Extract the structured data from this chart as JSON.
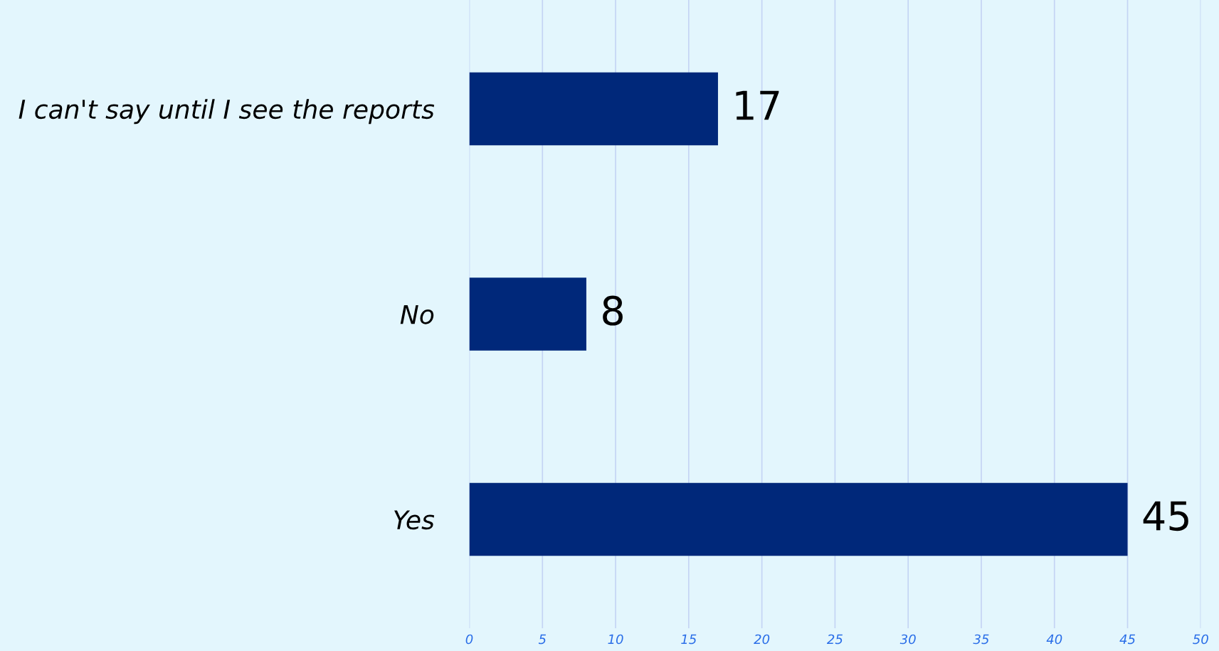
{
  "chart_data": {
    "type": "bar",
    "orientation": "horizontal",
    "categories": [
      "I can't say until I see the reports",
      "No",
      "Yes"
    ],
    "values": [
      17,
      8,
      45
    ],
    "color": "#00287a",
    "xlim": [
      0,
      50
    ],
    "xticks": [
      0,
      5,
      10,
      15,
      20,
      25,
      30,
      35,
      40,
      45,
      50
    ],
    "grid": "x",
    "data_labels": true
  }
}
